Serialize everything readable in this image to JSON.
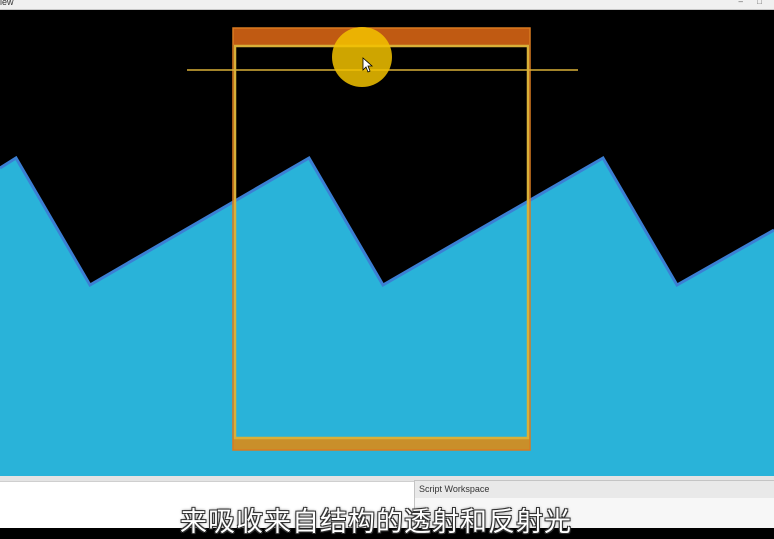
{
  "window": {
    "title": "iew",
    "controls": "– □"
  },
  "viewport": {
    "background_color": "#000000",
    "water_color": "#29b3d9",
    "water_edge_color": "#3b7fd4",
    "box_color": "#d9b038",
    "box_header_color": "#c05a12",
    "cursor_halo_color": "#f2c200"
  },
  "panels": {
    "script_workspace_title": "Script Workspace"
  },
  "subtitle": {
    "text": "来吸收来自结构的透射和反射光"
  }
}
